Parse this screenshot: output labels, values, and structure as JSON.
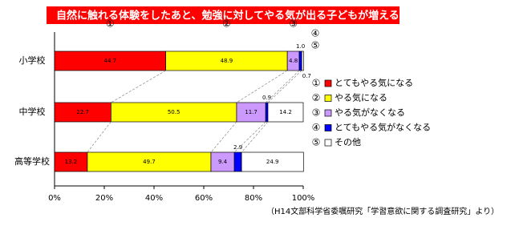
{
  "chart_data": {
    "type": "stacked-bar-horizontal",
    "title": "自然に触れる体験をしたあと、勉強に対してやる気が出る子どもが増える",
    "source": "（H14文部科学省委嘱研究「学習意欲に関する調査研究」より）",
    "categories": [
      "小学校",
      "中学校",
      "高等学校"
    ],
    "markers": [
      "①",
      "②",
      "③",
      "④",
      "⑤"
    ],
    "series": [
      {
        "name": "とてもやる気になる",
        "color": "#ff0000",
        "values": [
          44.7,
          22.7,
          13.2
        ]
      },
      {
        "name": "やる気になる",
        "color": "#ffff00",
        "values": [
          48.9,
          50.5,
          49.7
        ]
      },
      {
        "name": "やる気がなくなる",
        "color": "#cc99ff",
        "values": [
          4.8,
          11.7,
          9.4
        ]
      },
      {
        "name": "とてもやる気がなくなる",
        "color": "#0000ff",
        "values": [
          1.0,
          0.9,
          2.9
        ],
        "value_labels": [
          "1.0",
          "0.9",
          "2.9"
        ]
      },
      {
        "name": "その他",
        "color": "#ffffff",
        "values": [
          0.7,
          14.2,
          24.9
        ]
      }
    ],
    "xlim": [
      0,
      100
    ],
    "xticks": [
      {
        "value": 0,
        "label": "0%"
      },
      {
        "value": 20,
        "label": "20%"
      },
      {
        "value": 40,
        "label": "40%"
      },
      {
        "value": 60,
        "label": "60%"
      },
      {
        "value": 80,
        "label": "80%"
      },
      {
        "value": 100,
        "label": "100%"
      }
    ]
  }
}
